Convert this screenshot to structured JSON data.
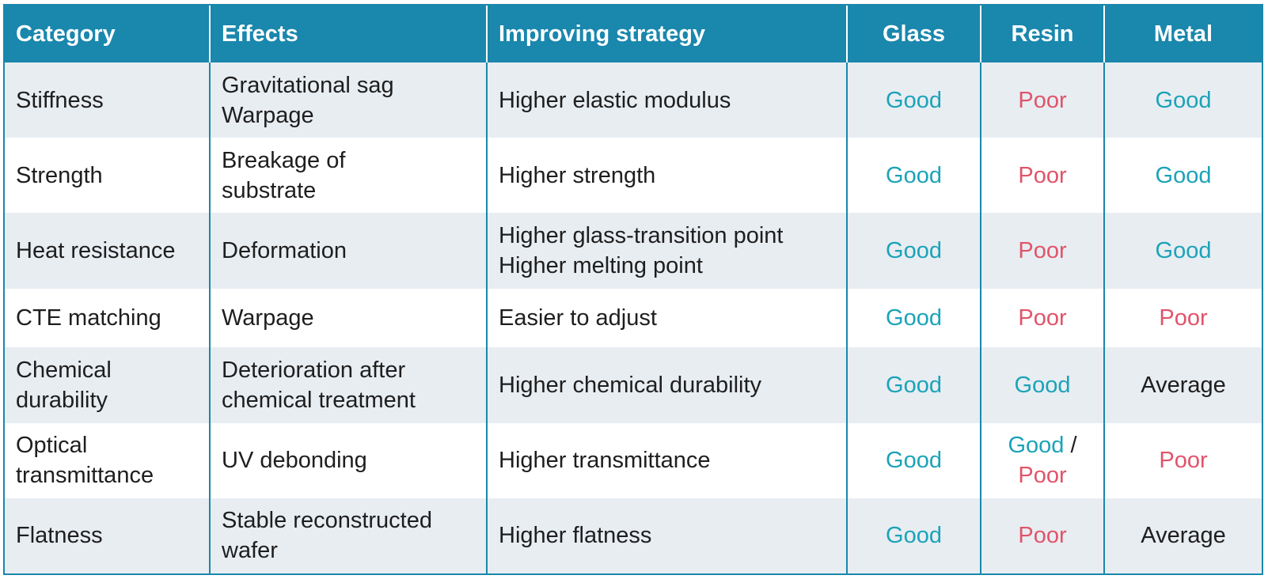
{
  "header": {
    "category": "Category",
    "effects": "Effects",
    "strategy": "Improving strategy",
    "glass": "Glass",
    "resin": "Resin",
    "metal": "Metal"
  },
  "rows": [
    {
      "category": "Stiffness",
      "effects": "Gravitational sag\nWarpage",
      "strategy": "Higher elastic modulus",
      "glass": "Good",
      "resin": "Poor",
      "metal": "Good"
    },
    {
      "category": "Strength",
      "effects": "Breakage of\nsubstrate",
      "strategy": "Higher strength",
      "glass": "Good",
      "resin": "Poor",
      "metal": "Good"
    },
    {
      "category": "Heat resistance",
      "effects": "Deformation",
      "strategy": "Higher glass-transition point\nHigher melting point",
      "glass": "Good",
      "resin": "Poor",
      "metal": "Good"
    },
    {
      "category": "CTE matching",
      "effects": "Warpage",
      "strategy": "Easier to adjust",
      "glass": "Good",
      "resin": "Poor",
      "metal": "Poor"
    },
    {
      "category": "Chemical\ndurability",
      "effects": "Deterioration after\nchemical treatment",
      "strategy": "Higher chemical durability",
      "glass": "Good",
      "resin": "Good",
      "metal": "Average"
    },
    {
      "category": "Optical\ntransmittance",
      "effects": "UV debonding",
      "strategy": "Higher transmittance",
      "glass": "Good",
      "resin_good": "Good",
      "resin_sep": " /",
      "resin_poor": "Poor",
      "metal": "Poor"
    },
    {
      "category": "Flatness",
      "effects": "Stable reconstructed\nwafer",
      "strategy": "Higher flatness",
      "glass": "Good",
      "resin": "Poor",
      "metal": "Average"
    }
  ],
  "colors": {
    "header_bg": "#1a87ad",
    "good": "#1ba3b8",
    "poor": "#e0546a",
    "stripe": "#e8edf2"
  }
}
